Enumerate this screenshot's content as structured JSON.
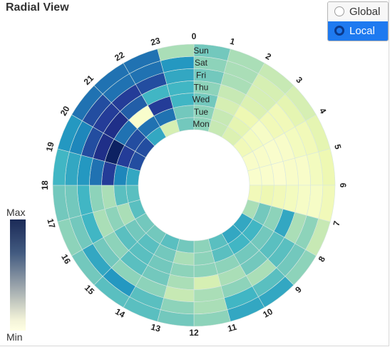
{
  "title": "Radial View",
  "scale_toggle": {
    "options": [
      {
        "label": "Global",
        "selected": false
      },
      {
        "label": "Local",
        "selected": true
      }
    ]
  },
  "legend": {
    "max_label": "Max",
    "min_label": "Min",
    "colors": [
      "#1b2a57",
      "#425a80",
      "#9aa4ab",
      "#f2f2d8",
      "#ffffe3"
    ]
  },
  "chart_data": {
    "type": "heatmap",
    "layout": "radial",
    "hours": [
      "0",
      "1",
      "2",
      "3",
      "4",
      "5",
      "6",
      "7",
      "8",
      "9",
      "10",
      "11",
      "12",
      "13",
      "14",
      "15",
      "16",
      "17",
      "18",
      "19",
      "20",
      "21",
      "22",
      "23"
    ],
    "days": [
      "Mon",
      "Tue",
      "Wed",
      "Thu",
      "Fri",
      "Sat",
      "Sun"
    ],
    "scale": "local",
    "color_range": {
      "min": "#ffffe3",
      "max": "#1b2a57"
    },
    "values": [
      [
        0.35,
        0.25,
        0.18,
        0.1,
        0.05,
        0.04,
        0.1,
        0.3,
        0.55,
        0.55,
        0.45,
        0.35,
        0.4,
        0.45,
        0.4,
        0.4,
        0.45,
        0.45,
        0.55,
        0.8,
        0.8,
        0.55,
        0.2,
        0.4
      ],
      [
        0.35,
        0.25,
        0.15,
        0.08,
        0.05,
        0.04,
        0.12,
        0.4,
        0.5,
        0.5,
        0.45,
        0.35,
        0.3,
        0.4,
        0.45,
        0.4,
        0.3,
        0.45,
        0.65,
        0.85,
        0.8,
        0.7,
        0.7,
        0.4
      ],
      [
        0.4,
        0.2,
        0.12,
        0.06,
        0.04,
        0.03,
        0.1,
        0.35,
        0.4,
        0.4,
        0.35,
        0.35,
        0.35,
        0.4,
        0.45,
        0.45,
        0.35,
        0.3,
        0.85,
        0.98,
        0.7,
        0.04,
        0.85,
        0.5
      ],
      [
        0.35,
        0.25,
        0.18,
        0.1,
        0.05,
        0.05,
        0.08,
        0.55,
        0.45,
        0.4,
        0.3,
        0.2,
        0.3,
        0.4,
        0.45,
        0.35,
        0.3,
        0.35,
        0.7,
        0.9,
        0.9,
        0.75,
        0.5,
        0.5
      ],
      [
        0.4,
        0.3,
        0.2,
        0.1,
        0.08,
        0.05,
        0.06,
        0.3,
        0.45,
        0.3,
        0.35,
        0.3,
        0.25,
        0.35,
        0.35,
        0.4,
        0.5,
        0.5,
        0.6,
        0.8,
        0.85,
        0.85,
        0.8,
        0.55
      ],
      [
        0.35,
        0.3,
        0.2,
        0.15,
        0.1,
        0.08,
        0.06,
        0.35,
        0.4,
        0.45,
        0.5,
        0.3,
        0.35,
        0.45,
        0.6,
        0.55,
        0.4,
        0.4,
        0.55,
        0.65,
        0.8,
        0.7,
        0.7,
        0.6
      ],
      [
        0.4,
        0.3,
        0.25,
        0.2,
        0.15,
        0.12,
        0.1,
        0.25,
        0.35,
        0.55,
        0.55,
        0.35,
        0.4,
        0.45,
        0.45,
        0.4,
        0.35,
        0.4,
        0.5,
        0.6,
        0.7,
        0.7,
        0.7,
        0.3
      ]
    ]
  }
}
